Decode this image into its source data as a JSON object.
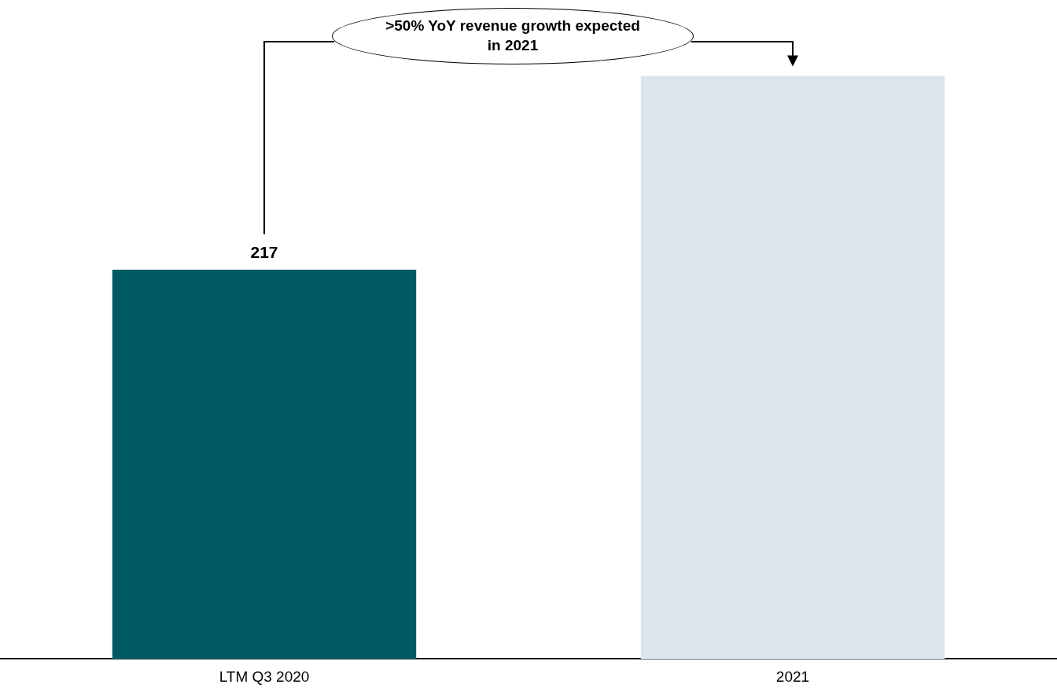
{
  "chart_data": {
    "type": "bar",
    "categories": [
      "LTM Q3 2020",
      "2021"
    ],
    "values": [
      217,
      325
    ],
    "colors": [
      "#005a64",
      "#dde4ee"
    ],
    "value_labels": [
      "217",
      null
    ],
    "annotations": [
      ">50% YoY revenue growth expected in 2021"
    ],
    "grid": false,
    "legend": false
  }
}
